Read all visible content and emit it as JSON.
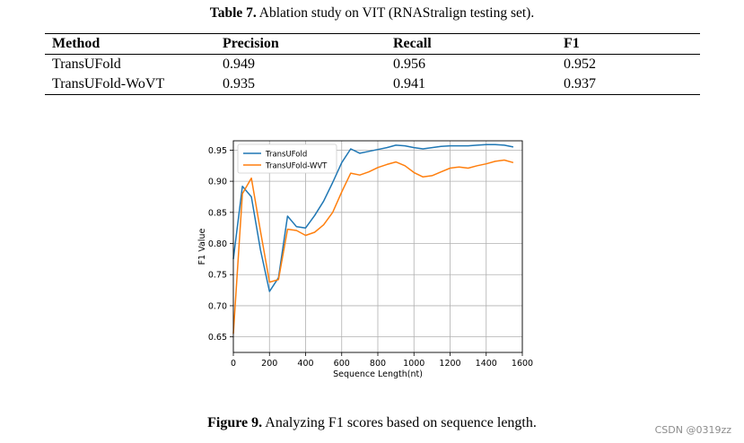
{
  "table": {
    "caption_label": "Table 7.",
    "caption_text": " Ablation study on VIT (RNAStralign testing set).",
    "headers": [
      "Method",
      "Precision",
      "Recall",
      "F1"
    ],
    "rows": [
      [
        "TransUFold",
        "0.949",
        "0.956",
        "0.952"
      ],
      [
        "TransUFold-WoVT",
        "0.935",
        "0.941",
        "0.937"
      ]
    ]
  },
  "figure": {
    "caption_label": "Figure 9.",
    "caption_text": " Analyzing F1 scores based on sequence length."
  },
  "watermark": "CSDN @0319zz",
  "chart_data": {
    "type": "line",
    "title": "",
    "xlabel": "Sequence Length(nt)",
    "ylabel": "F1 Value",
    "xlim": [
      0,
      1600
    ],
    "ylim": [
      0.625,
      0.965
    ],
    "xticks": [
      0,
      200,
      400,
      600,
      800,
      1000,
      1200,
      1400,
      1600
    ],
    "yticks": [
      0.65,
      0.7,
      0.75,
      0.8,
      0.85,
      0.9,
      0.95
    ],
    "ytick_labels": [
      "0.65",
      "0.70",
      "0.75",
      "0.80",
      "0.85",
      "0.90",
      "0.95"
    ],
    "grid": true,
    "legend_position": "upper-left",
    "series": [
      {
        "name": "TransUFold",
        "color": "#1f77b4",
        "x": [
          0,
          50,
          100,
          150,
          200,
          250,
          300,
          350,
          400,
          450,
          500,
          550,
          600,
          650,
          700,
          750,
          800,
          850,
          900,
          950,
          1000,
          1050,
          1100,
          1150,
          1200,
          1250,
          1300,
          1350,
          1400,
          1450,
          1500,
          1550
        ],
        "y": [
          0.775,
          0.892,
          0.875,
          0.79,
          0.723,
          0.745,
          0.844,
          0.827,
          0.825,
          0.845,
          0.868,
          0.898,
          0.93,
          0.952,
          0.945,
          0.948,
          0.951,
          0.954,
          0.958,
          0.957,
          0.954,
          0.952,
          0.954,
          0.956,
          0.957,
          0.957,
          0.957,
          0.958,
          0.959,
          0.959,
          0.958,
          0.955
        ]
      },
      {
        "name": "TransUFold-WVT",
        "color": "#ff7f0e",
        "x": [
          0,
          50,
          100,
          150,
          200,
          250,
          300,
          350,
          400,
          450,
          500,
          550,
          600,
          650,
          700,
          750,
          800,
          850,
          900,
          950,
          1000,
          1050,
          1100,
          1150,
          1200,
          1250,
          1300,
          1350,
          1400,
          1450,
          1500,
          1550
        ],
        "y": [
          0.655,
          0.88,
          0.905,
          0.82,
          0.738,
          0.742,
          0.823,
          0.821,
          0.813,
          0.818,
          0.83,
          0.85,
          0.883,
          0.913,
          0.91,
          0.915,
          0.922,
          0.927,
          0.931,
          0.925,
          0.914,
          0.907,
          0.909,
          0.915,
          0.921,
          0.923,
          0.921,
          0.925,
          0.928,
          0.932,
          0.934,
          0.93
        ]
      }
    ]
  }
}
